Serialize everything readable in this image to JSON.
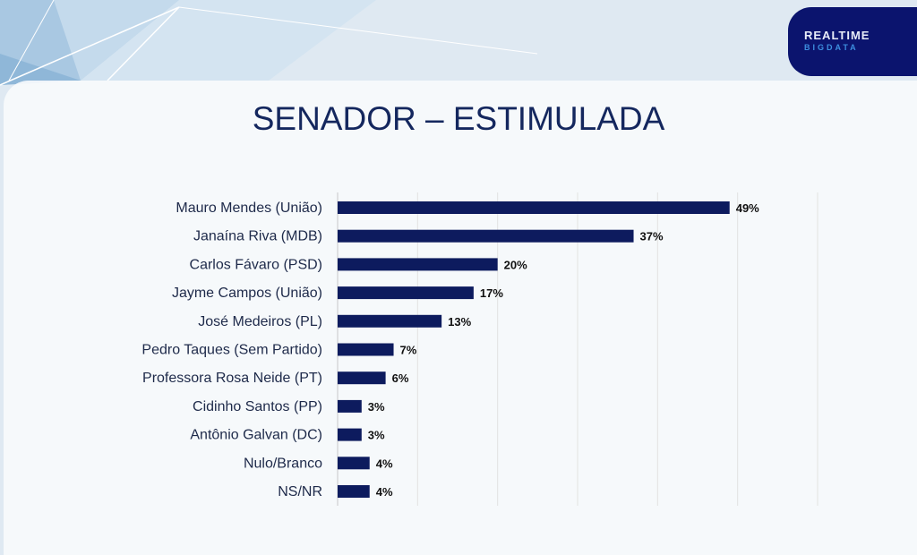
{
  "logo": {
    "line1": "REALTIME",
    "line2": "BIGDATA"
  },
  "colors": {
    "bar": "#0d1b5e",
    "title": "#14275e",
    "logo_bg": "#0b146e"
  },
  "chart_data": {
    "type": "bar",
    "orientation": "horizontal",
    "title": "SENADOR – ESTIMULADA",
    "categories": [
      "Mauro Mendes (União)",
      "Janaína Riva (MDB)",
      "Carlos Fávaro (PSD)",
      "Jayme Campos (União)",
      "José Medeiros (PL)",
      "Pedro Taques (Sem Partido)",
      "Professora Rosa Neide (PT)",
      "Cidinho Santos (PP)",
      "Antônio Galvan (DC)",
      "Nulo/Branco",
      "NS/NR"
    ],
    "values": [
      49,
      37,
      20,
      17,
      13,
      7,
      6,
      3,
      3,
      4,
      4
    ],
    "value_labels": [
      "49%",
      "37%",
      "20%",
      "17%",
      "13%",
      "7%",
      "6%",
      "3%",
      "3%",
      "4%",
      "4%"
    ],
    "xlim": [
      0,
      60
    ],
    "grid": true,
    "xlabel": "",
    "ylabel": ""
  }
}
